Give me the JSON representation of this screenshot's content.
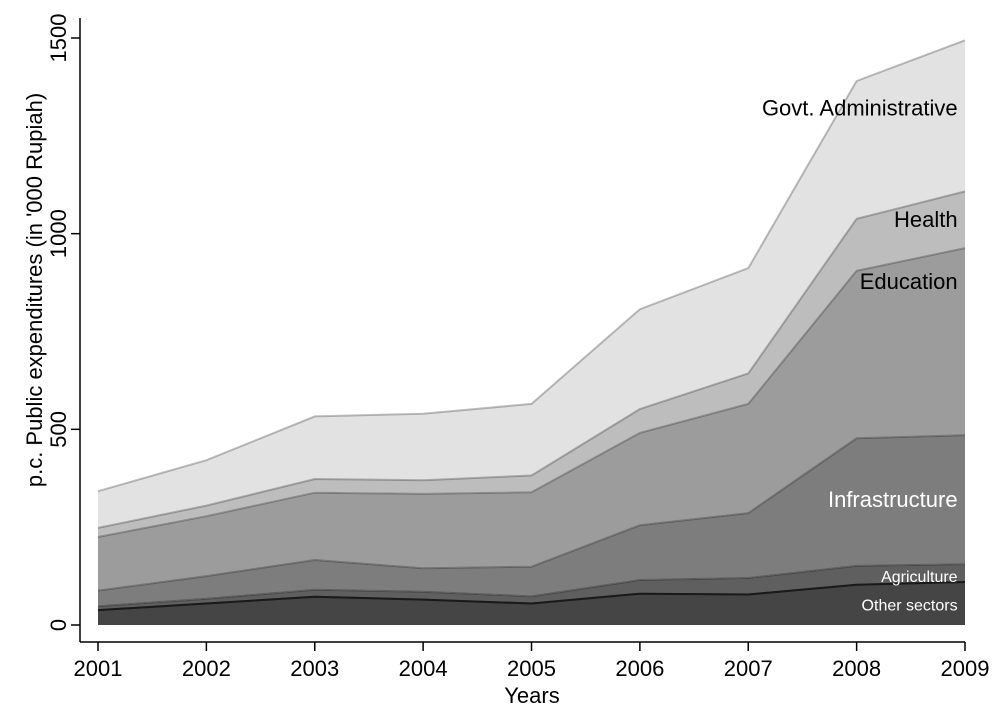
{
  "chart_data": {
    "type": "area",
    "stacked": true,
    "title": "",
    "xlabel": "Years",
    "ylabel": "p.c. Public expenditures (in '000 Rupiah)",
    "x": [
      2001,
      2002,
      2003,
      2004,
      2005,
      2006,
      2007,
      2008,
      2009
    ],
    "xlim": [
      2001,
      2009
    ],
    "ylim": [
      0,
      1500
    ],
    "yticks": [
      0,
      500,
      1000,
      1500
    ],
    "grid": false,
    "legend": "inline-labels-right",
    "series": [
      {
        "name": "Other sectors",
        "values": [
          38,
          55,
          72,
          65,
          55,
          80,
          78,
          103,
          110
        ],
        "color": "#454545",
        "label_color": "#ffffff"
      },
      {
        "name": "Agriculture",
        "values": [
          10,
          12,
          18,
          20,
          18,
          35,
          42,
          48,
          45
        ],
        "color": "#5f5f5f",
        "label_color": "#ffffff"
      },
      {
        "name": "Infrastructure",
        "values": [
          40,
          58,
          76,
          60,
          76,
          140,
          166,
          326,
          330
        ],
        "color": "#7d7d7d",
        "label_color": "#ffffff"
      },
      {
        "name": "Education",
        "values": [
          137,
          153,
          172,
          190,
          190,
          236,
          279,
          428,
          478
        ],
        "color": "#9c9c9c",
        "label_color": "#000000"
      },
      {
        "name": "Health",
        "values": [
          23,
          27,
          35,
          35,
          43,
          61,
          78,
          133,
          145
        ],
        "color": "#bdbdbd",
        "label_color": "#000000"
      },
      {
        "name": "Govt. Administrative",
        "values": [
          94,
          116,
          160,
          170,
          183,
          255,
          269,
          352,
          386
        ],
        "color": "#e2e2e2",
        "label_color": "#000000"
      }
    ]
  }
}
